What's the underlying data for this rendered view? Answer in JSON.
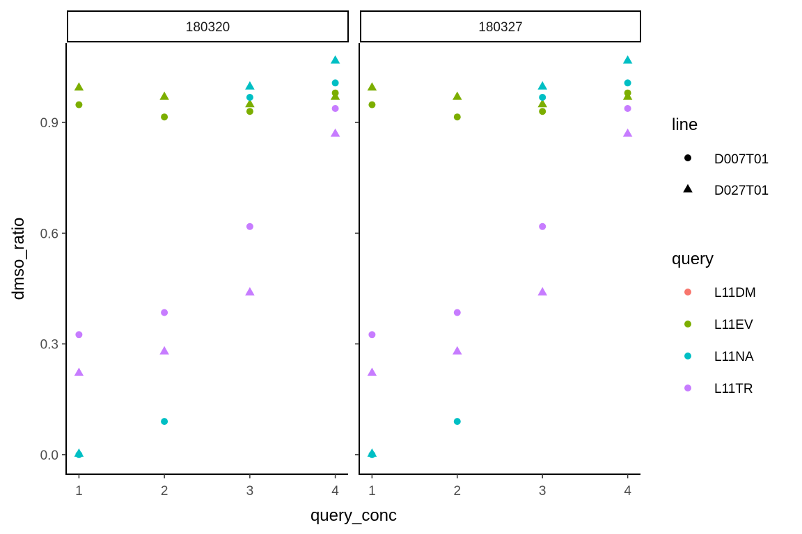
{
  "chart_data": {
    "type": "scatter",
    "xlabel": "query_conc",
    "ylabel": "dmso_ratio",
    "x_ticks": [
      1,
      2,
      3,
      4
    ],
    "y_ticks": [
      0.0,
      0.3,
      0.6,
      0.9
    ],
    "y_tick_labels": [
      "0.0",
      "0.3",
      "0.6",
      "0.9"
    ],
    "xlim": [
      0.85,
      4.15
    ],
    "ylim": [
      -0.053,
      1.115
    ],
    "grid": false,
    "facets": [
      "180320",
      "180327"
    ],
    "legend_position": "right",
    "legends": {
      "shape": {
        "title": "line",
        "entries": [
          {
            "label": "D007T01",
            "shape": "circle"
          },
          {
            "label": "D027T01",
            "shape": "triangle"
          }
        ]
      },
      "color": {
        "title": "query",
        "entries": [
          {
            "label": "L11DM",
            "color": "#F8766D"
          },
          {
            "label": "L11EV",
            "color": "#7CAE00"
          },
          {
            "label": "L11NA",
            "color": "#00BFC4"
          },
          {
            "label": "L11TR",
            "color": "#C77CFF"
          }
        ]
      }
    },
    "points": [
      {
        "x": 1,
        "y": 0.948,
        "query": "L11EV",
        "line": "D007T01"
      },
      {
        "x": 2,
        "y": 0.915,
        "query": "L11EV",
        "line": "D007T01"
      },
      {
        "x": 3,
        "y": 0.93,
        "query": "L11EV",
        "line": "D007T01"
      },
      {
        "x": 4,
        "y": 0.98,
        "query": "L11EV",
        "line": "D007T01"
      },
      {
        "x": 1,
        "y": 0.995,
        "query": "L11EV",
        "line": "D027T01"
      },
      {
        "x": 2,
        "y": 0.97,
        "query": "L11EV",
        "line": "D027T01"
      },
      {
        "x": 3,
        "y": 0.95,
        "query": "L11EV",
        "line": "D027T01"
      },
      {
        "x": 4,
        "y": 0.97,
        "query": "L11EV",
        "line": "D027T01"
      },
      {
        "x": 1,
        "y": 0.0,
        "query": "L11NA",
        "line": "D007T01"
      },
      {
        "x": 2,
        "y": 0.09,
        "query": "L11NA",
        "line": "D007T01"
      },
      {
        "x": 3,
        "y": 0.968,
        "query": "L11NA",
        "line": "D007T01"
      },
      {
        "x": 4,
        "y": 1.007,
        "query": "L11NA",
        "line": "D007T01"
      },
      {
        "x": 1,
        "y": 0.003,
        "query": "L11NA",
        "line": "D027T01"
      },
      {
        "x": 3,
        "y": 0.998,
        "query": "L11NA",
        "line": "D027T01"
      },
      {
        "x": 4,
        "y": 1.068,
        "query": "L11NA",
        "line": "D027T01"
      },
      {
        "x": 1,
        "y": 0.325,
        "query": "L11TR",
        "line": "D007T01"
      },
      {
        "x": 2,
        "y": 0.385,
        "query": "L11TR",
        "line": "D007T01"
      },
      {
        "x": 3,
        "y": 0.618,
        "query": "L11TR",
        "line": "D007T01"
      },
      {
        "x": 4,
        "y": 0.938,
        "query": "L11TR",
        "line": "D007T01"
      },
      {
        "x": 1,
        "y": 0.222,
        "query": "L11TR",
        "line": "D027T01"
      },
      {
        "x": 2,
        "y": 0.28,
        "query": "L11TR",
        "line": "D027T01"
      },
      {
        "x": 3,
        "y": 0.44,
        "query": "L11TR",
        "line": "D027T01"
      },
      {
        "x": 4,
        "y": 0.87,
        "query": "L11TR",
        "line": "D027T01"
      }
    ]
  }
}
